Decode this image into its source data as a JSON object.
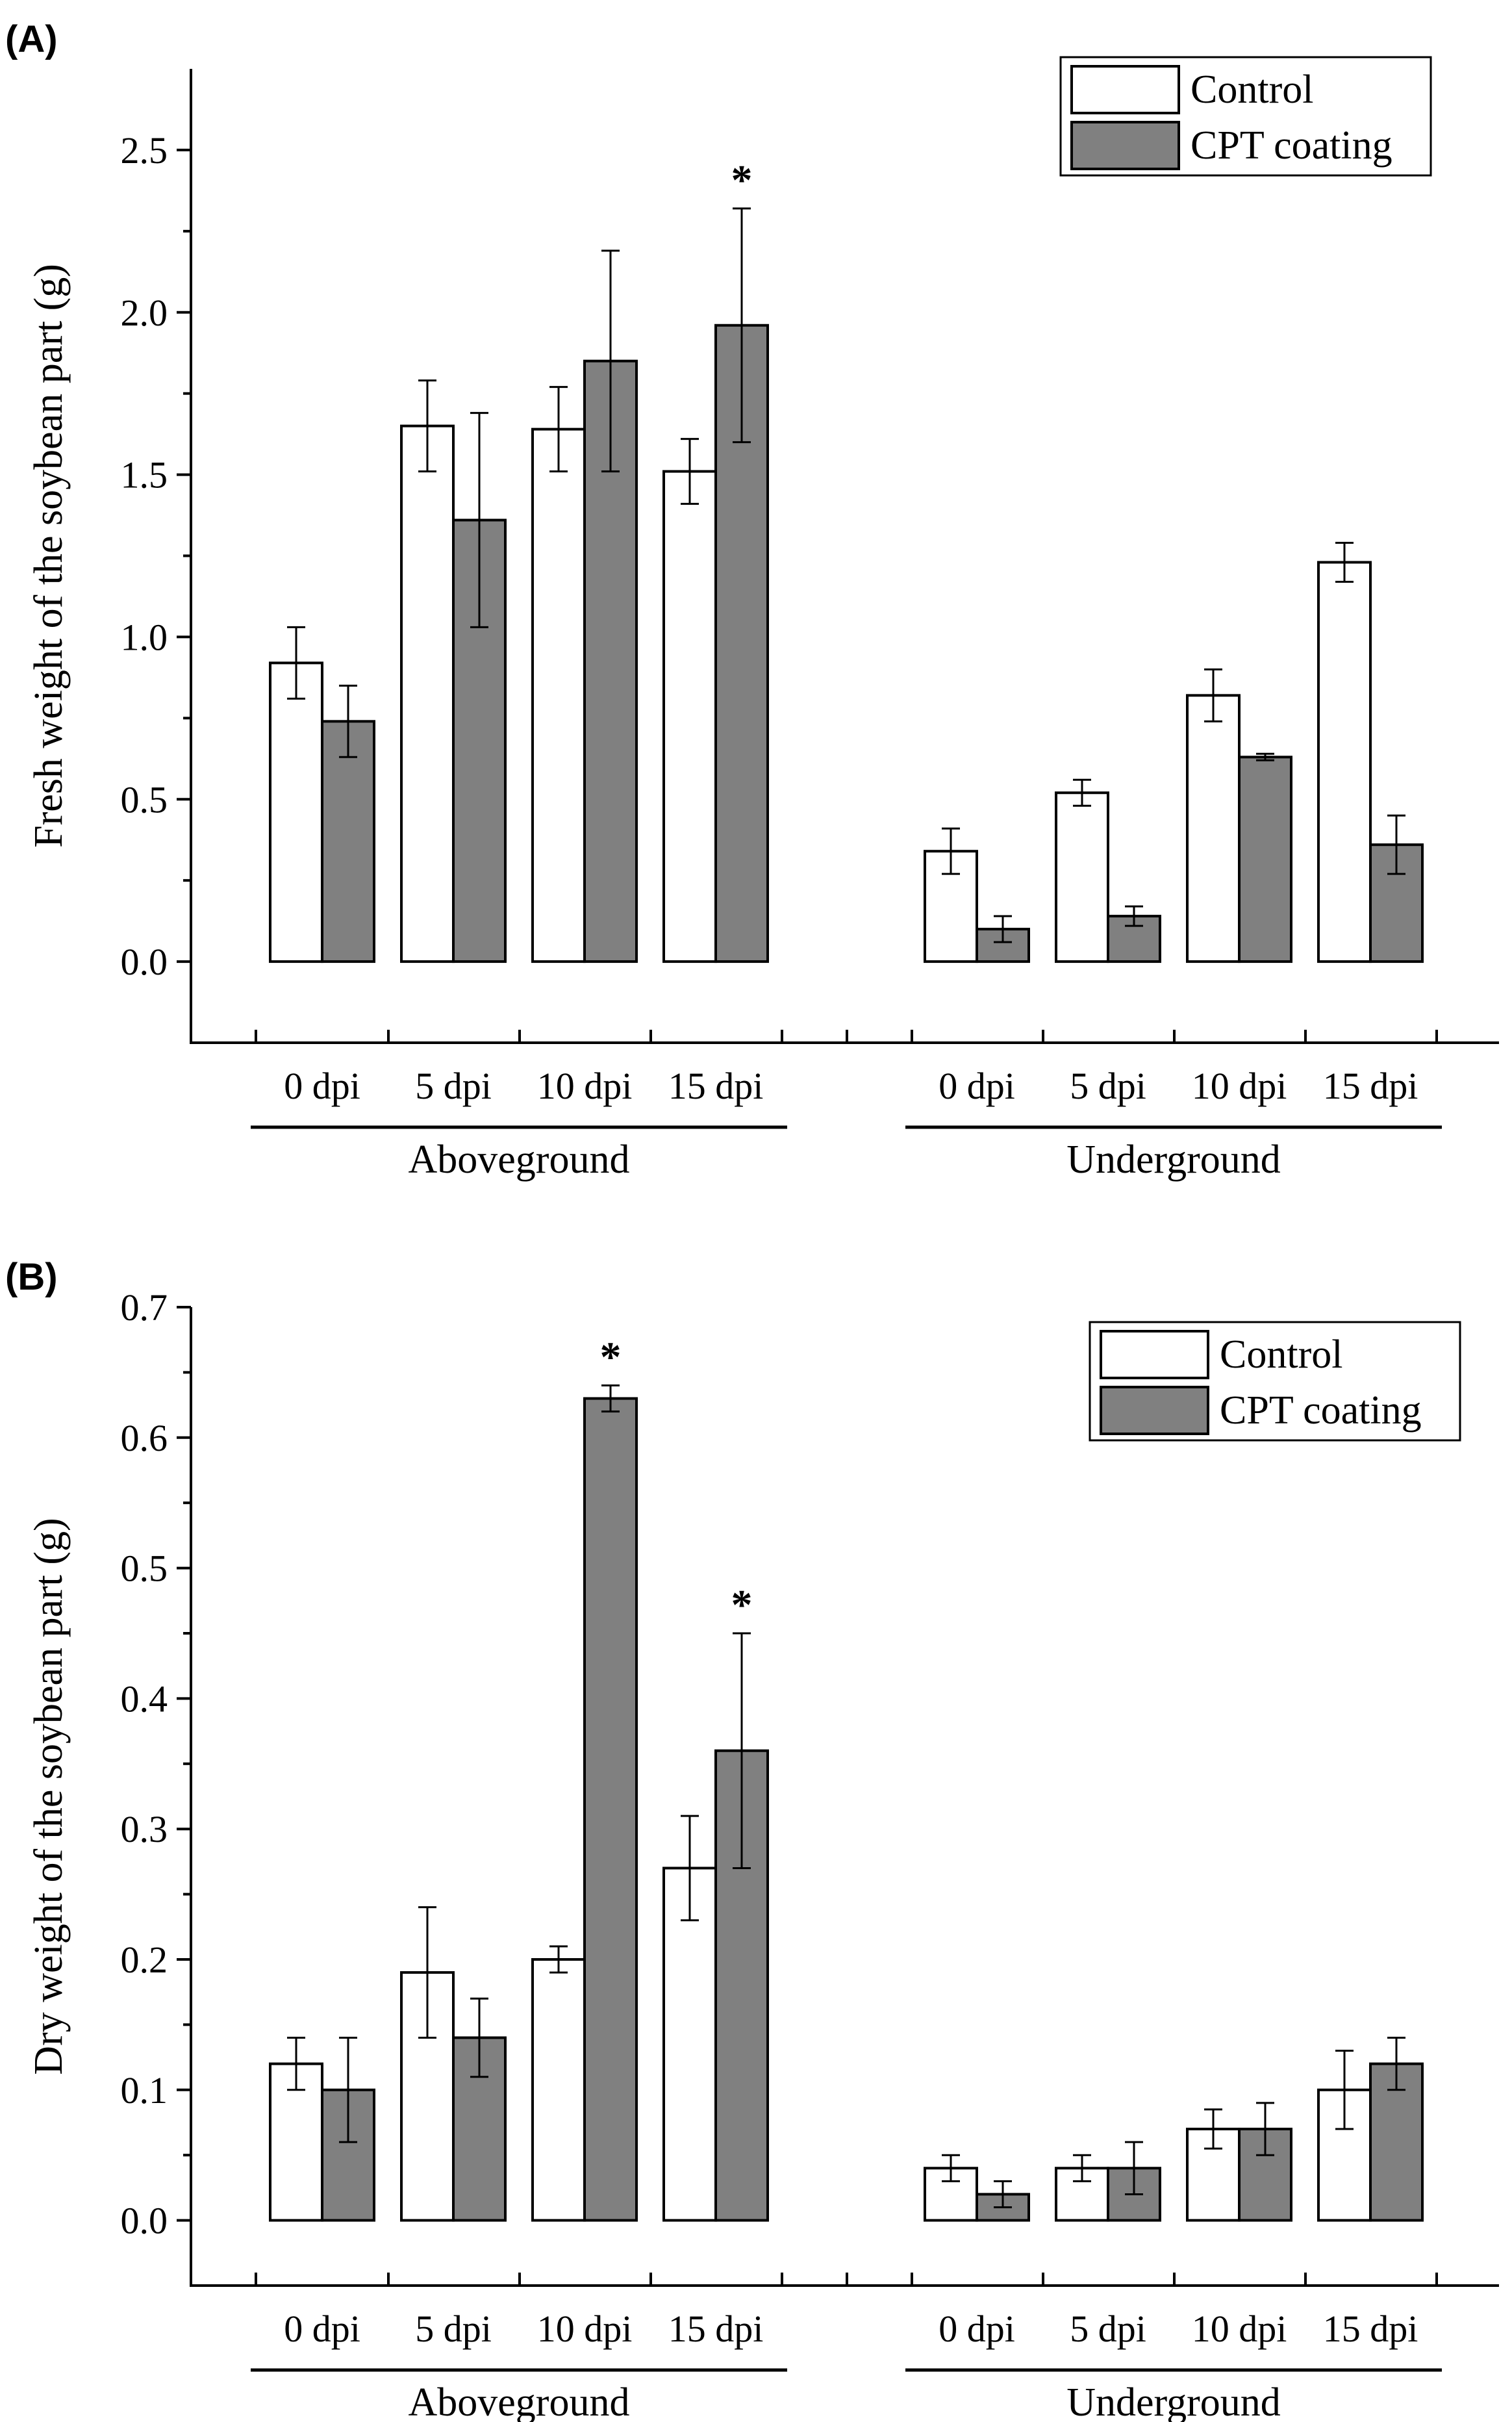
{
  "colors": {
    "control": "#ffffff",
    "cpt": "#808080",
    "axis": "#000000"
  },
  "chart_data": [
    {
      "type": "bar",
      "panel_label": "(A)",
      "ylabel": "Fresh weight of the soybean part (g)",
      "ylim": [
        -0.25,
        2.75
      ],
      "yticks": [
        0.0,
        0.5,
        1.0,
        1.5,
        2.0,
        2.5
      ],
      "ytick_labels": [
        "0.0",
        "0.5",
        "1.0",
        "1.5",
        "2.0",
        "2.5"
      ],
      "legend": {
        "position": "top-right",
        "entries": [
          "Control",
          "CPT coating"
        ]
      },
      "groups": [
        {
          "name": "Aboveground",
          "categories": [
            "0 dpi",
            "5 dpi",
            "10 dpi",
            "15 dpi"
          ],
          "series": [
            {
              "name": "Control",
              "values": [
                0.92,
                1.65,
                1.64,
                1.51
              ],
              "errors": [
                0.11,
                0.14,
                0.13,
                0.1
              ],
              "significant": [
                false,
                false,
                false,
                false
              ]
            },
            {
              "name": "CPT coating",
              "values": [
                0.74,
                1.36,
                1.85,
                1.96
              ],
              "errors": [
                0.11,
                0.33,
                0.34,
                0.36
              ],
              "significant": [
                false,
                false,
                false,
                true
              ]
            }
          ]
        },
        {
          "name": "Underground",
          "categories": [
            "0 dpi",
            "5 dpi",
            "10 dpi",
            "15 dpi"
          ],
          "series": [
            {
              "name": "Control",
              "values": [
                0.34,
                0.52,
                0.82,
                1.23
              ],
              "errors": [
                0.07,
                0.04,
                0.08,
                0.06
              ],
              "significant": [
                false,
                false,
                false,
                false
              ]
            },
            {
              "name": "CPT coating",
              "values": [
                0.1,
                0.14,
                0.63,
                0.36
              ],
              "errors": [
                0.04,
                0.03,
                0.01,
                0.09
              ],
              "significant": [
                false,
                false,
                false,
                false
              ]
            }
          ]
        }
      ],
      "marker": "*"
    },
    {
      "type": "bar",
      "panel_label": "(B)",
      "ylabel": "Dry weight of the soybean part (g)",
      "ylim": [
        -0.05,
        0.7
      ],
      "yticks": [
        0.0,
        0.1,
        0.2,
        0.3,
        0.4,
        0.5,
        0.6,
        0.7
      ],
      "ytick_labels": [
        "0.0",
        "0.1",
        "0.2",
        "0.3",
        "0.4",
        "0.5",
        "0.6",
        "0.7"
      ],
      "legend": {
        "position": "top-right",
        "entries": [
          "Control",
          "CPT coating"
        ]
      },
      "groups": [
        {
          "name": "Aboveground",
          "categories": [
            "0 dpi",
            "5 dpi",
            "10 dpi",
            "15 dpi"
          ],
          "series": [
            {
              "name": "Control",
              "values": [
                0.12,
                0.19,
                0.2,
                0.27
              ],
              "errors": [
                0.02,
                0.05,
                0.01,
                0.04
              ],
              "significant": [
                false,
                false,
                false,
                false
              ]
            },
            {
              "name": "CPT coating",
              "values": [
                0.1,
                0.14,
                0.63,
                0.36
              ],
              "errors": [
                0.04,
                0.03,
                0.01,
                0.09
              ],
              "significant": [
                false,
                false,
                true,
                true
              ]
            }
          ]
        },
        {
          "name": "Underground",
          "categories": [
            "0 dpi",
            "5 dpi",
            "10 dpi",
            "15 dpi"
          ],
          "series": [
            {
              "name": "Control",
              "values": [
                0.04,
                0.04,
                0.07,
                0.1
              ],
              "errors": [
                0.01,
                0.01,
                0.015,
                0.03
              ],
              "significant": [
                false,
                false,
                false,
                false
              ]
            },
            {
              "name": "CPT coating",
              "values": [
                0.02,
                0.04,
                0.07,
                0.12
              ],
              "errors": [
                0.01,
                0.02,
                0.02,
                0.02
              ],
              "significant": [
                false,
                false,
                false,
                false
              ]
            }
          ]
        }
      ],
      "marker": "*"
    }
  ]
}
